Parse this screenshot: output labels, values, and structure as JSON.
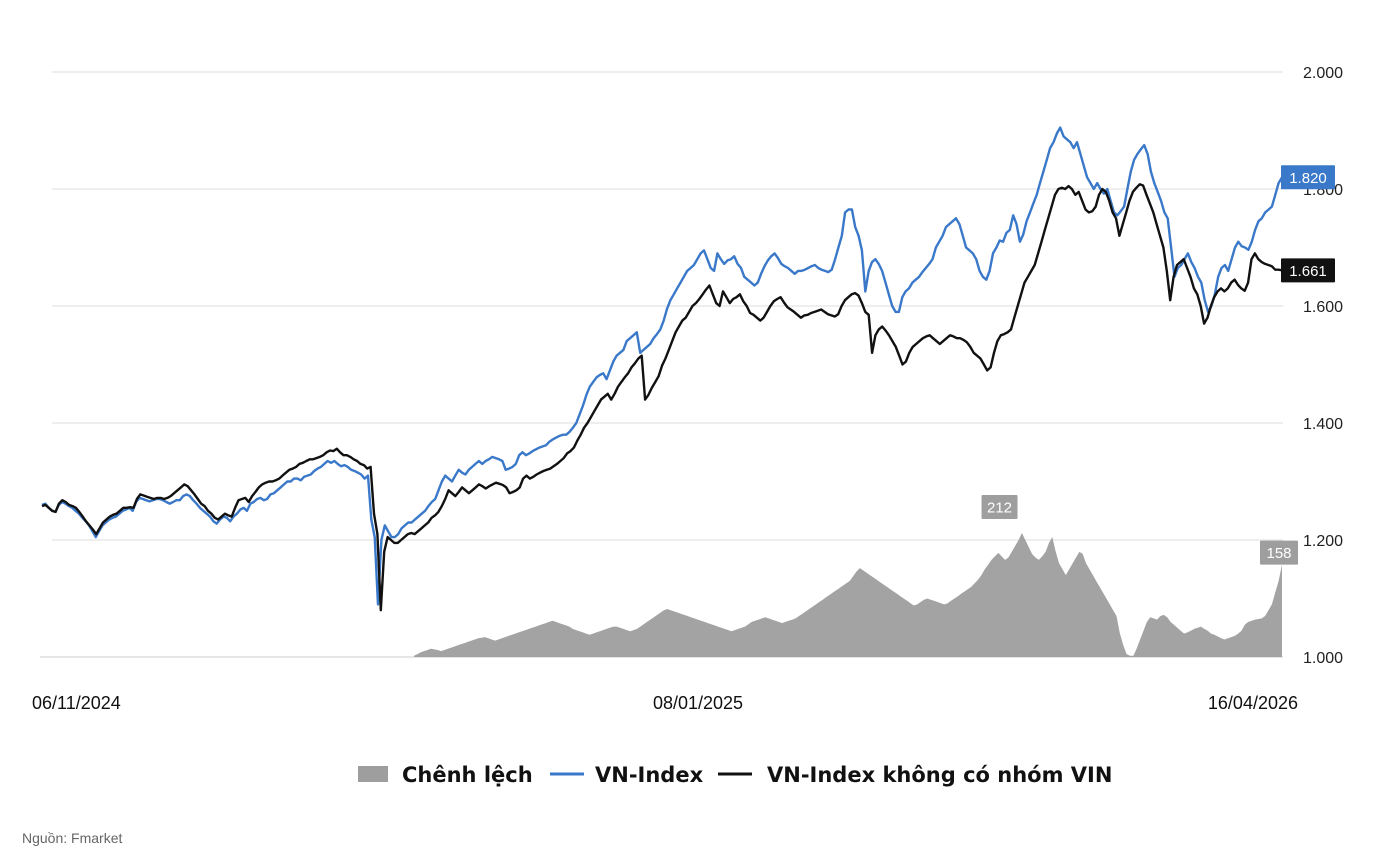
{
  "source": "Nguồn: Fmarket",
  "chart_data": {
    "type": "line",
    "ylim": [
      1000,
      2000
    ],
    "y_ticks": [
      "2.000",
      "1.800",
      "1.600",
      "1.400",
      "1.200",
      "1.000"
    ],
    "y_tick_values": [
      2000,
      1800,
      1600,
      1400,
      1200,
      1000
    ],
    "x_tick_labels": [
      "06/11/2024",
      "08/01/2025",
      "16/04/2026"
    ],
    "x_tick_positions": [
      0,
      0.5,
      1
    ],
    "grid": true,
    "legend_position": "bottom",
    "colors": {
      "vnindex": "#3a78c9",
      "vnindex_ex_vin": "#111111",
      "spread": "#9e9e9e",
      "grid": "#dddddd"
    },
    "legend": [
      "Chênh lệch",
      "VN-Index",
      "VN-Index không có nhóm VIN"
    ],
    "series": [
      {
        "name": "VN-Index",
        "values": [
          1260,
          1262,
          1255,
          1250,
          1248,
          1260,
          1265,
          1262,
          1258,
          1255,
          1250,
          1245,
          1238,
          1232,
          1225,
          1215,
          1205,
          1215,
          1225,
          1230,
          1235,
          1238,
          1240,
          1245,
          1250,
          1252,
          1255,
          1250,
          1265,
          1272,
          1270,
          1268,
          1266,
          1268,
          1270,
          1270,
          1268,
          1265,
          1262,
          1265,
          1268,
          1268,
          1275,
          1278,
          1275,
          1268,
          1262,
          1255,
          1250,
          1245,
          1240,
          1232,
          1228,
          1235,
          1240,
          1238,
          1232,
          1240,
          1245,
          1252,
          1255,
          1250,
          1262,
          1265,
          1270,
          1272,
          1268,
          1270,
          1278,
          1280,
          1285,
          1290,
          1295,
          1300,
          1300,
          1305,
          1305,
          1302,
          1308,
          1310,
          1312,
          1318,
          1322,
          1325,
          1330,
          1335,
          1332,
          1335,
          1330,
          1326,
          1328,
          1325,
          1320,
          1318,
          1315,
          1312,
          1305,
          1310,
          1235,
          1205,
          1090,
          1200,
          1225,
          1215,
          1205,
          1205,
          1210,
          1220,
          1225,
          1230,
          1230,
          1235,
          1240,
          1245,
          1250,
          1258,
          1265,
          1270,
          1285,
          1300,
          1310,
          1305,
          1300,
          1310,
          1320,
          1315,
          1312,
          1320,
          1325,
          1330,
          1335,
          1330,
          1335,
          1338,
          1342,
          1340,
          1338,
          1335,
          1320,
          1322,
          1325,
          1330,
          1345,
          1350,
          1345,
          1348,
          1352,
          1355,
          1358,
          1360,
          1362,
          1368,
          1372,
          1375,
          1378,
          1380,
          1380,
          1385,
          1392,
          1400,
          1415,
          1430,
          1448,
          1462,
          1470,
          1478,
          1482,
          1485,
          1475,
          1490,
          1505,
          1515,
          1520,
          1525,
          1540,
          1545,
          1550,
          1555,
          1520,
          1525,
          1530,
          1535,
          1545,
          1552,
          1560,
          1575,
          1595,
          1610,
          1620,
          1630,
          1640,
          1650,
          1660,
          1665,
          1670,
          1680,
          1690,
          1695,
          1680,
          1665,
          1660,
          1690,
          1680,
          1672,
          1678,
          1680,
          1685,
          1672,
          1665,
          1650,
          1645,
          1640,
          1635,
          1640,
          1655,
          1668,
          1678,
          1685,
          1690,
          1682,
          1672,
          1668,
          1665,
          1660,
          1655,
          1660,
          1660,
          1662,
          1665,
          1668,
          1670,
          1665,
          1662,
          1660,
          1658,
          1662,
          1680,
          1700,
          1720,
          1760,
          1765,
          1765,
          1735,
          1720,
          1695,
          1625,
          1660,
          1675,
          1680,
          1672,
          1660,
          1640,
          1620,
          1600,
          1590,
          1590,
          1615,
          1625,
          1630,
          1640,
          1645,
          1650,
          1658,
          1665,
          1672,
          1680,
          1700,
          1710,
          1720,
          1735,
          1740,
          1745,
          1750,
          1740,
          1720,
          1700,
          1695,
          1690,
          1680,
          1660,
          1650,
          1645,
          1660,
          1690,
          1700,
          1712,
          1710,
          1725,
          1730,
          1755,
          1740,
          1710,
          1722,
          1745,
          1760,
          1775,
          1790,
          1810,
          1830,
          1850,
          1870,
          1880,
          1895,
          1905,
          1890,
          1885,
          1880,
          1870,
          1880,
          1860,
          1840,
          1820,
          1810,
          1800,
          1810,
          1800,
          1792,
          1800,
          1780,
          1760,
          1755,
          1762,
          1770,
          1800,
          1830,
          1850,
          1860,
          1868,
          1875,
          1860,
          1830,
          1810,
          1795,
          1780,
          1760,
          1750,
          1700,
          1650,
          1665,
          1670,
          1680,
          1690,
          1675,
          1665,
          1650,
          1640,
          1610,
          1590,
          1600,
          1620,
          1650,
          1665,
          1670,
          1660,
          1680,
          1700,
          1710,
          1702,
          1700,
          1696,
          1710,
          1730,
          1745,
          1750,
          1760,
          1765,
          1770,
          1790,
          1810,
          1820
        ]
      },
      {
        "name": "VN-Index không có nhóm VIN",
        "values": [
          1258,
          1260,
          1255,
          1250,
          1248,
          1262,
          1268,
          1265,
          1260,
          1258,
          1255,
          1248,
          1240,
          1232,
          1225,
          1218,
          1210,
          1220,
          1230,
          1235,
          1240,
          1243,
          1245,
          1250,
          1255,
          1255,
          1256,
          1255,
          1270,
          1278,
          1276,
          1274,
          1272,
          1270,
          1272,
          1272,
          1270,
          1272,
          1275,
          1280,
          1285,
          1290,
          1295,
          1292,
          1285,
          1278,
          1270,
          1262,
          1258,
          1250,
          1245,
          1238,
          1235,
          1240,
          1245,
          1242,
          1240,
          1255,
          1268,
          1270,
          1272,
          1265,
          1275,
          1282,
          1290,
          1295,
          1298,
          1300,
          1300,
          1302,
          1305,
          1310,
          1315,
          1320,
          1322,
          1325,
          1330,
          1332,
          1335,
          1338,
          1338,
          1340,
          1342,
          1345,
          1350,
          1353,
          1352,
          1356,
          1350,
          1345,
          1345,
          1342,
          1338,
          1335,
          1330,
          1328,
          1322,
          1325,
          1245,
          1210,
          1080,
          1180,
          1205,
          1200,
          1195,
          1195,
          1200,
          1205,
          1210,
          1212,
          1210,
          1215,
          1220,
          1225,
          1230,
          1238,
          1242,
          1248,
          1258,
          1270,
          1285,
          1280,
          1275,
          1282,
          1290,
          1285,
          1280,
          1285,
          1290,
          1295,
          1292,
          1288,
          1292,
          1295,
          1298,
          1296,
          1294,
          1290,
          1280,
          1282,
          1285,
          1290,
          1305,
          1310,
          1305,
          1308,
          1312,
          1315,
          1318,
          1320,
          1322,
          1326,
          1330,
          1335,
          1340,
          1348,
          1352,
          1358,
          1370,
          1380,
          1392,
          1400,
          1410,
          1420,
          1430,
          1440,
          1445,
          1450,
          1440,
          1450,
          1462,
          1470,
          1478,
          1485,
          1495,
          1502,
          1510,
          1515,
          1440,
          1448,
          1460,
          1470,
          1480,
          1498,
          1510,
          1525,
          1540,
          1555,
          1565,
          1575,
          1580,
          1590,
          1600,
          1605,
          1612,
          1620,
          1628,
          1635,
          1620,
          1605,
          1600,
          1625,
          1615,
          1605,
          1612,
          1615,
          1620,
          1608,
          1600,
          1588,
          1585,
          1580,
          1575,
          1580,
          1590,
          1600,
          1608,
          1612,
          1615,
          1606,
          1598,
          1594,
          1590,
          1585,
          1580,
          1584,
          1585,
          1588,
          1590,
          1592,
          1594,
          1590,
          1586,
          1584,
          1582,
          1586,
          1600,
          1610,
          1615,
          1620,
          1622,
          1618,
          1605,
          1590,
          1585,
          1520,
          1550,
          1560,
          1565,
          1558,
          1550,
          1540,
          1530,
          1515,
          1500,
          1505,
          1520,
          1530,
          1535,
          1540,
          1545,
          1548,
          1550,
          1545,
          1540,
          1535,
          1540,
          1545,
          1550,
          1548,
          1545,
          1545,
          1542,
          1538,
          1530,
          1520,
          1515,
          1510,
          1500,
          1490,
          1495,
          1520,
          1540,
          1550,
          1552,
          1555,
          1560,
          1580,
          1600,
          1620,
          1640,
          1650,
          1660,
          1670,
          1690,
          1710,
          1730,
          1750,
          1770,
          1790,
          1800,
          1802,
          1800,
          1805,
          1800,
          1790,
          1795,
          1780,
          1765,
          1760,
          1762,
          1770,
          1790,
          1800,
          1795,
          1780,
          1760,
          1750,
          1720,
          1740,
          1760,
          1780,
          1795,
          1802,
          1808,
          1806,
          1790,
          1775,
          1760,
          1740,
          1720,
          1700,
          1660,
          1610,
          1650,
          1670,
          1675,
          1680,
          1665,
          1650,
          1630,
          1620,
          1600,
          1570,
          1580,
          1600,
          1615,
          1625,
          1630,
          1625,
          1630,
          1640,
          1645,
          1636,
          1630,
          1626,
          1640,
          1680,
          1690,
          1680,
          1675,
          1672,
          1670,
          1668,
          1662,
          1662,
          1661
        ]
      }
    ],
    "spread": {
      "name": "Chênh lệch",
      "start_fraction": 0.3,
      "values": [
        2,
        5,
        8,
        10,
        12,
        14,
        13,
        12,
        10,
        12,
        14,
        16,
        18,
        20,
        22,
        24,
        26,
        28,
        30,
        32,
        33,
        34,
        32,
        30,
        28,
        30,
        32,
        34,
        36,
        38,
        40,
        42,
        44,
        46,
        48,
        50,
        52,
        54,
        56,
        58,
        60,
        62,
        60,
        58,
        56,
        54,
        52,
        48,
        46,
        44,
        42,
        40,
        38,
        40,
        42,
        44,
        46,
        48,
        50,
        52,
        52,
        50,
        48,
        46,
        44,
        46,
        48,
        52,
        56,
        60,
        64,
        68,
        72,
        76,
        80,
        82,
        80,
        78,
        76,
        74,
        72,
        70,
        68,
        66,
        64,
        62,
        60,
        58,
        56,
        54,
        52,
        50,
        48,
        46,
        44,
        46,
        48,
        50,
        52,
        56,
        60,
        62,
        64,
        66,
        68,
        66,
        64,
        62,
        60,
        58,
        60,
        62,
        64,
        66,
        70,
        74,
        78,
        82,
        86,
        90,
        94,
        98,
        102,
        106,
        110,
        114,
        118,
        122,
        126,
        130,
        138,
        146,
        152,
        148,
        144,
        140,
        136,
        132,
        128,
        124,
        120,
        116,
        112,
        108,
        104,
        100,
        96,
        92,
        88,
        90,
        94,
        98,
        100,
        98,
        96,
        94,
        92,
        90,
        92,
        96,
        100,
        104,
        108,
        112,
        116,
        120,
        126,
        132,
        140,
        150,
        158,
        166,
        172,
        178,
        172,
        166,
        170,
        180,
        190,
        200,
        212,
        200,
        188,
        176,
        170,
        166,
        172,
        180,
        195,
        205,
        180,
        160,
        150,
        140,
        150,
        160,
        170,
        180,
        176,
        160,
        150,
        140,
        130,
        120,
        110,
        100,
        90,
        80,
        70,
        40,
        20,
        5,
        2,
        2,
        15,
        30,
        45,
        60,
        68,
        66,
        64,
        70,
        72,
        68,
        60,
        55,
        50,
        45,
        40,
        42,
        45,
        48,
        50,
        52,
        48,
        45,
        40,
        38,
        35,
        32,
        30,
        32,
        34,
        36,
        40,
        45,
        55,
        60,
        62,
        64,
        65,
        66,
        70,
        80,
        90,
        110,
        130,
        158
      ]
    },
    "last_values": {
      "vnindex": "1.820",
      "vnindex_ex_vin": "1.661"
    },
    "spread_annotations": [
      {
        "label": "212",
        "value": 212,
        "position_fraction": 0.7722
      },
      {
        "label": "158",
        "value": 158,
        "position_fraction": 1.0
      }
    ]
  }
}
